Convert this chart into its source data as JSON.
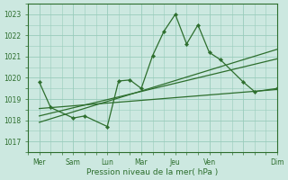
{
  "title": "",
  "xlabel": "Pression niveau de la mer( hPa )",
  "bg_color": "#cce8e0",
  "grid_color": "#99ccbb",
  "line_color": "#2d6e2d",
  "ylim": [
    1016.5,
    1023.5
  ],
  "yticks": [
    1017,
    1018,
    1019,
    1020,
    1021,
    1022,
    1023
  ],
  "xlim": [
    0,
    22
  ],
  "xtick_positions": [
    1,
    4,
    7,
    10,
    13,
    16,
    19,
    22
  ],
  "xtick_labels": [
    "Mer",
    "Sam",
    "Lun",
    "Mar",
    "Jeu",
    "Ven",
    "",
    "Dim"
  ],
  "main_x": [
    1,
    2,
    4,
    5,
    7,
    8,
    9,
    10,
    11,
    12,
    13,
    14,
    15,
    16,
    17,
    19,
    20,
    22
  ],
  "main_y": [
    1019.8,
    1018.6,
    1018.1,
    1018.2,
    1017.7,
    1019.85,
    1019.9,
    1019.5,
    1021.05,
    1022.2,
    1023.0,
    1021.6,
    1022.5,
    1021.2,
    1020.85,
    1019.8,
    1019.35,
    1019.5
  ],
  "trend1_x": [
    1,
    22
  ],
  "trend1_y": [
    1018.55,
    1019.45
  ],
  "trend2_x": [
    1,
    22
  ],
  "trend2_y": [
    1018.2,
    1020.9
  ],
  "trend3_x": [
    1,
    22
  ],
  "trend3_y": [
    1017.9,
    1021.35
  ]
}
